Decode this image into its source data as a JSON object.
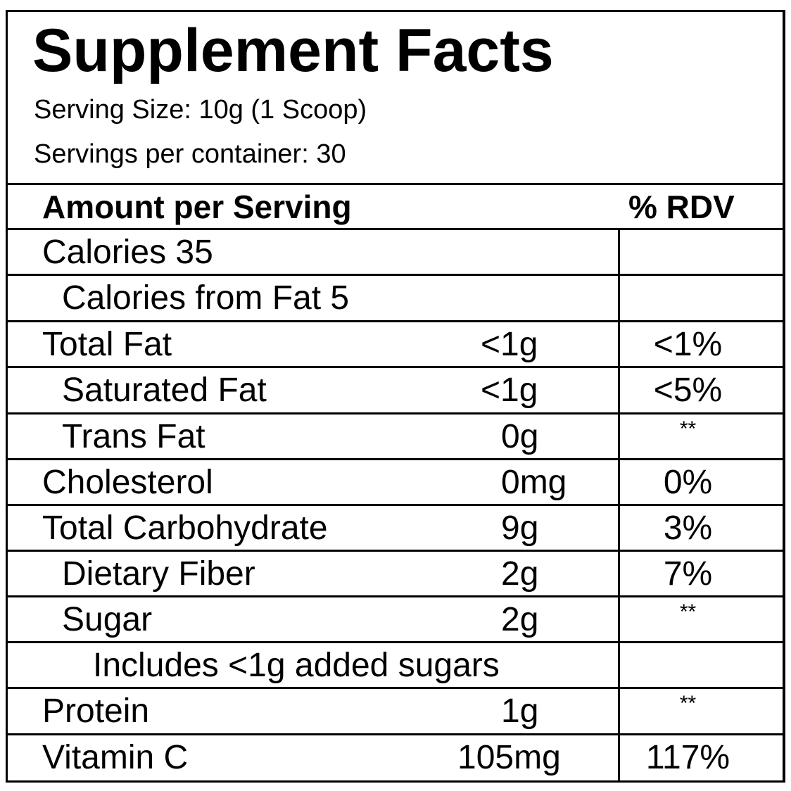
{
  "title": "Supplement Facts",
  "serving_size": "Serving Size: 10g (1 Scoop)",
  "servings_per_container": "Servings per container: 30",
  "header": {
    "amount": "Amount per Serving",
    "rdv": "% RDV"
  },
  "rows": [
    {
      "label": "Calories 35",
      "amount": "",
      "rdv": ""
    },
    {
      "label": "Calories from Fat 5",
      "amount": "",
      "rdv": ""
    },
    {
      "label": "Total Fat",
      "amount": "<1g",
      "rdv": "<1%"
    },
    {
      "label": "Saturated Fat",
      "amount": "<1g",
      "rdv": "<5%"
    },
    {
      "label": "Trans Fat",
      "amount": "0g",
      "rdv": "**"
    },
    {
      "label": "Cholesterol",
      "amount": "0mg",
      "rdv": "0%"
    },
    {
      "label": "Total Carbohydrate",
      "amount": "9g",
      "rdv": "3%"
    },
    {
      "label": "Dietary Fiber",
      "amount": "2g",
      "rdv": "7%"
    },
    {
      "label": "Sugar",
      "amount": "2g",
      "rdv": "**"
    },
    {
      "label": "Includes <1g added sugars",
      "amount": "",
      "rdv": ""
    },
    {
      "label": "Protein",
      "amount": "1g",
      "rdv": "**"
    },
    {
      "label": "Vitamin C",
      "amount": "105mg",
      "rdv": "117%"
    }
  ]
}
